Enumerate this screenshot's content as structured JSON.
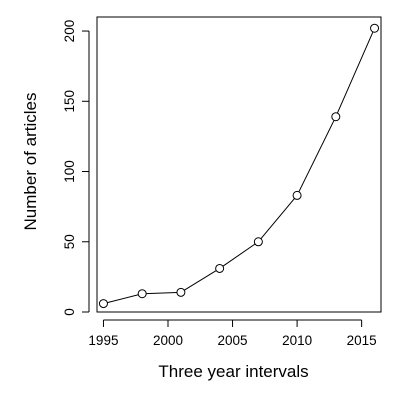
{
  "chart_data": {
    "type": "line",
    "title": "",
    "xlabel": "Three year intervals",
    "ylabel": "Number of articles",
    "x": [
      1995,
      1998,
      2001,
      2004,
      2007,
      2010,
      2013,
      2016
    ],
    "series": [
      {
        "values": [
          6,
          13,
          14,
          31,
          50,
          83,
          139,
          202
        ],
        "marker": "open-circle",
        "color": "#000000"
      }
    ],
    "xlim": [
      1994.5,
      2016.5
    ],
    "ylim": [
      0,
      210
    ],
    "xticks": [
      1995,
      2000,
      2005,
      2010,
      2015
    ],
    "yticks": [
      0,
      50,
      100,
      150,
      200
    ],
    "xtick_labels": [
      "1995",
      "2000",
      "2005",
      "2010",
      "2015"
    ],
    "ytick_labels": [
      "0",
      "50",
      "100",
      "150",
      "200"
    ],
    "grid": false,
    "legend": "none"
  }
}
